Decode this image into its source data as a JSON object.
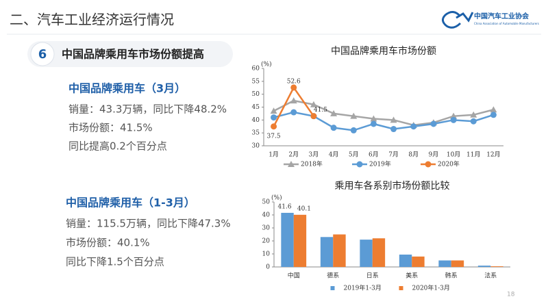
{
  "header": {
    "title": "二、汽车工业经济运行情况",
    "logo_text": "中国汽车工业协会",
    "logo_sub": "China Association of Automobile Manufacturers"
  },
  "section": {
    "number": "6",
    "title": "中国品牌乘用车市场份额提高"
  },
  "blocks": [
    {
      "heading": "中国品牌乘用车（3月）",
      "lines": [
        "销量：43.3万辆，同比下降48.2%",
        "市场份额：41.5%",
        "同比提高0.2个百分点"
      ]
    },
    {
      "heading": "中国品牌乘用车（1-3月）",
      "lines": [
        "销量：115.5万辆，同比下降47.3%",
        "市场份额：40.1%",
        "同比下降1.5个百分点"
      ]
    }
  ],
  "page_number": "18",
  "chart_data": [
    {
      "type": "line",
      "title": "中国品牌乘用车市场份额",
      "y_label": "(%)",
      "categories": [
        "1月",
        "2月",
        "3月",
        "4月",
        "5月",
        "6月",
        "7月",
        "8月",
        "9月",
        "10月",
        "11月",
        "12月"
      ],
      "series": [
        {
          "name": "2018年",
          "color": "#a5a5a5",
          "marker": "triangle",
          "values": [
            43.5,
            47.5,
            46,
            42.5,
            41.5,
            40.5,
            40,
            38,
            39,
            41.5,
            42,
            44
          ]
        },
        {
          "name": "2019年",
          "color": "#5b9bd5",
          "marker": "circle",
          "values": [
            41,
            43,
            41.5,
            37,
            36,
            38.5,
            36.5,
            37.5,
            38.5,
            40,
            39.5,
            42
          ]
        },
        {
          "name": "2020年",
          "color": "#ed7d31",
          "marker": "circle",
          "values": [
            37.5,
            52.6,
            41.5,
            null,
            null,
            null,
            null,
            null,
            null,
            null,
            null,
            null
          ],
          "value_labels": [
            "37.5",
            "52.6",
            "41.5",
            null,
            null,
            null,
            null,
            null,
            null,
            null,
            null,
            null
          ]
        }
      ],
      "ylim": [
        30,
        60
      ],
      "yticks": [
        30,
        35,
        40,
        45,
        50,
        55,
        60
      ]
    },
    {
      "type": "bar",
      "title": "乘用车各系别市场份额比较",
      "y_label": "(%)",
      "categories": [
        "中国",
        "德系",
        "日系",
        "美系",
        "韩系",
        "法系"
      ],
      "series": [
        {
          "name": "2019年1-3月",
          "color": "#5b9bd5",
          "values": [
            41.6,
            23,
            21,
            9.5,
            5,
            1
          ],
          "value_labels": [
            "41.6",
            null,
            null,
            null,
            null,
            null
          ]
        },
        {
          "name": "2020年1-3月",
          "color": "#ed7d31",
          "values": [
            40.1,
            25,
            22,
            8,
            5,
            0.5
          ],
          "value_labels": [
            "40.1",
            null,
            null,
            null,
            null,
            null
          ]
        }
      ],
      "ylim": [
        0,
        50
      ],
      "yticks": [
        0,
        10,
        20,
        30,
        40,
        50
      ]
    }
  ]
}
